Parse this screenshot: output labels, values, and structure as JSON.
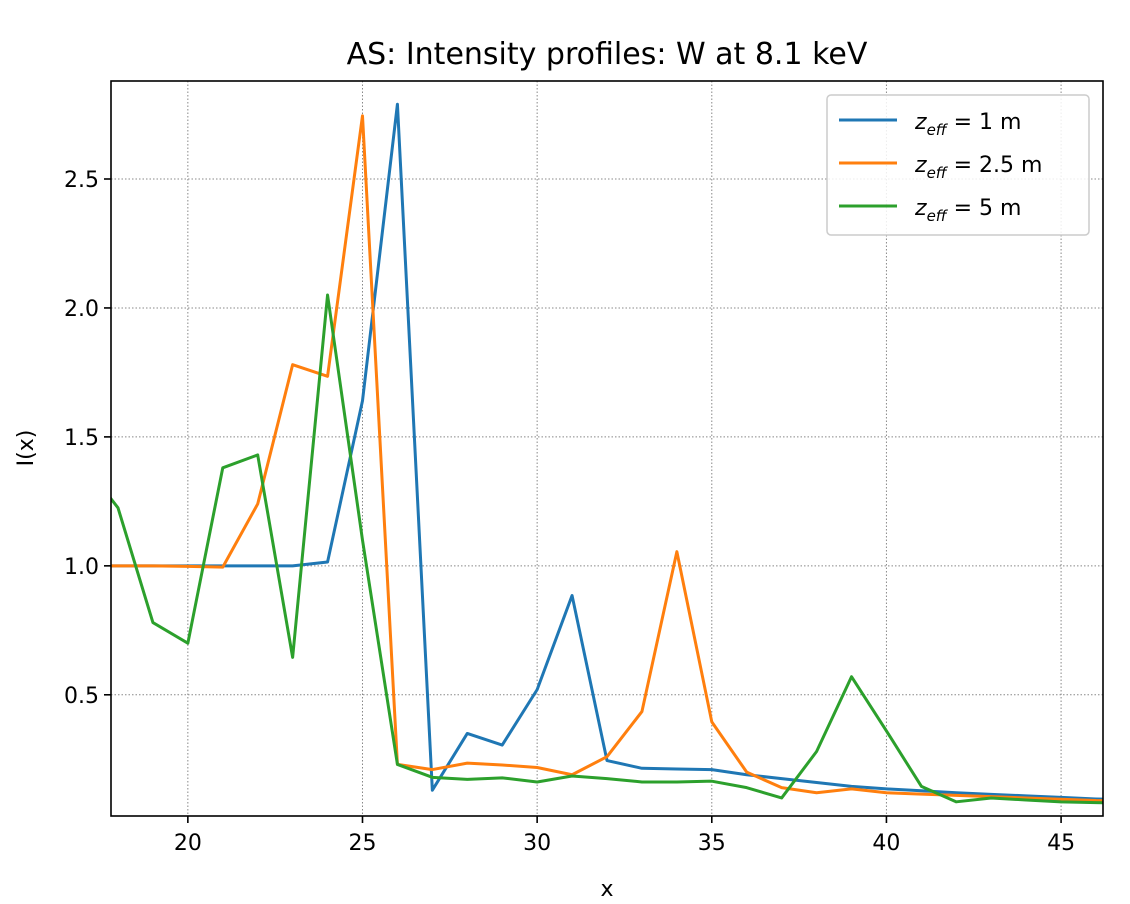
{
  "chart_data": {
    "type": "line",
    "title": "AS: Intensity profiles: W at 8.1 keV",
    "xlabel": "x",
    "ylabel": "I(x)",
    "xlim": [
      17.8,
      46.2
    ],
    "ylim": [
      0.03,
      2.88
    ],
    "xticks": [
      20,
      25,
      30,
      35,
      40,
      45
    ],
    "yticks": [
      0.5,
      1.0,
      1.5,
      2.0,
      2.5
    ],
    "xtick_labels": [
      "20",
      "25",
      "30",
      "35",
      "40",
      "45"
    ],
    "ytick_labels": [
      "0.5",
      "1.0",
      "1.5",
      "2.0",
      "2.5"
    ],
    "grid": true,
    "legend_position": "top-right",
    "series": [
      {
        "name": "z_eff = 1 m",
        "legend_z": "z",
        "legend_sub": "eff",
        "legend_rest": " = 1 m",
        "color": "#1f77b4",
        "x": [
          17,
          18,
          19,
          20,
          21,
          22,
          23,
          24,
          25,
          26,
          27,
          28,
          29,
          30,
          31,
          32,
          33,
          34,
          35,
          36,
          37,
          38,
          39,
          40,
          41,
          42,
          43,
          44,
          45,
          46,
          47
        ],
        "y": [
          1.0,
          1.0,
          1.0,
          1.0,
          1.0,
          1.0,
          1.0,
          1.015,
          1.64,
          2.79,
          0.13,
          0.35,
          0.305,
          0.52,
          0.885,
          0.245,
          0.215,
          0.212,
          0.21,
          0.19,
          0.175,
          0.16,
          0.145,
          0.135,
          0.128,
          0.12,
          0.114,
          0.108,
          0.102,
          0.096,
          0.092
        ]
      },
      {
        "name": "z_eff = 2.5 m",
        "legend_z": "z",
        "legend_sub": "eff",
        "legend_rest": " = 2.5 m",
        "color": "#ff7f0e",
        "x": [
          17,
          18,
          19,
          20,
          21,
          22,
          23,
          24,
          25,
          26,
          27,
          28,
          29,
          30,
          31,
          32,
          33,
          34,
          35,
          36,
          37,
          38,
          39,
          40,
          41,
          42,
          43,
          44,
          45,
          46,
          47
        ],
        "y": [
          1.0,
          1.0,
          1.0,
          0.998,
          0.995,
          1.24,
          1.78,
          1.735,
          2.745,
          0.23,
          0.21,
          0.235,
          0.228,
          0.218,
          0.19,
          0.26,
          0.435,
          1.055,
          0.395,
          0.2,
          0.14,
          0.12,
          0.135,
          0.12,
          0.115,
          0.11,
          0.105,
          0.1,
          0.095,
          0.09,
          0.088
        ]
      },
      {
        "name": "z_eff = 5 m",
        "legend_z": "z",
        "legend_sub": "eff",
        "legend_rest": " = 5 m",
        "color": "#2ca02c",
        "x": [
          17,
          18,
          19,
          20,
          21,
          22,
          23,
          24,
          25,
          26,
          27,
          28,
          29,
          30,
          31,
          32,
          33,
          34,
          35,
          36,
          37,
          38,
          39,
          40,
          41,
          42,
          43,
          44,
          45,
          46,
          47
        ],
        "y": [
          1.4,
          1.225,
          0.78,
          0.7,
          1.38,
          1.43,
          0.645,
          2.05,
          1.1,
          0.23,
          0.18,
          0.172,
          0.178,
          0.162,
          0.185,
          0.175,
          0.162,
          0.162,
          0.165,
          0.14,
          0.1,
          0.28,
          0.57,
          0.36,
          0.145,
          0.085,
          0.1,
          0.092,
          0.085,
          0.082,
          0.08
        ]
      }
    ]
  }
}
